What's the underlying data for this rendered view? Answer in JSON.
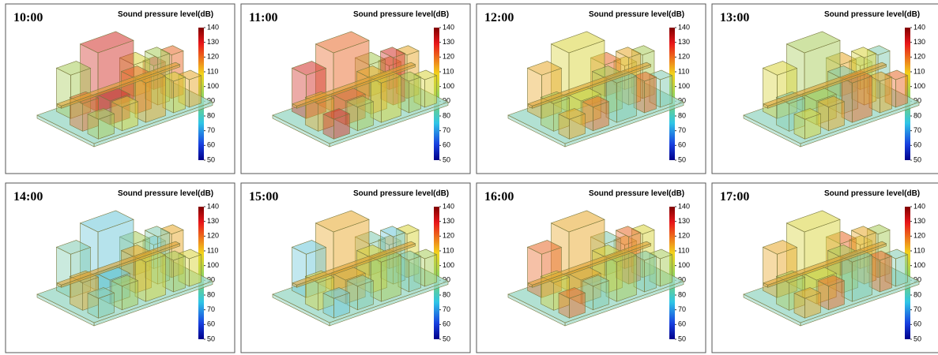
{
  "panels": [
    {
      "time": "10:00"
    },
    {
      "time": "11:00"
    },
    {
      "time": "12:00"
    },
    {
      "time": "13:00"
    },
    {
      "time": "14:00"
    },
    {
      "time": "15:00"
    },
    {
      "time": "16:00"
    },
    {
      "time": "17:00"
    }
  ],
  "colorbar": {
    "title": "Sound pressure level(dB)",
    "ticks": [
      50,
      60,
      70,
      80,
      90,
      100,
      110,
      120,
      130,
      140
    ]
  }
}
